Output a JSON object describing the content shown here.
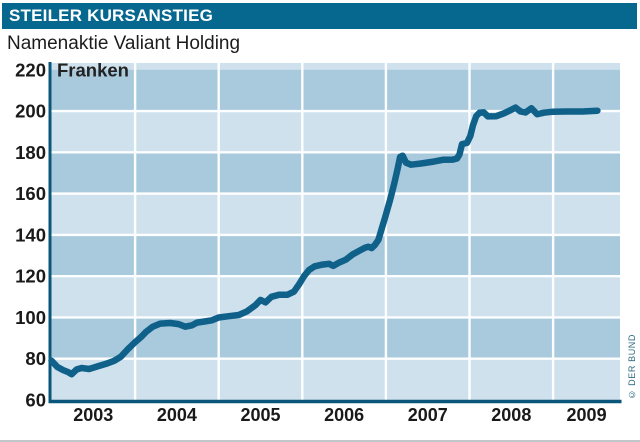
{
  "header": {
    "title": "STEILER KURSANSTIEG"
  },
  "subtitle": "Namenaktie Valiant Holding",
  "credit": "© DER BUND",
  "colors": {
    "header_bg": "#06688e",
    "band_light": "#cfe1ed",
    "band_dark": "#a9cadd",
    "grid_white": "#fdfeff",
    "axis": "#0a567a",
    "series_line": "#10618a",
    "tick_text": "#1a1a1a",
    "credit_text": "#2f6a80"
  },
  "chart_data": {
    "type": "line",
    "title": "Namenaktie Valiant Holding",
    "ylabel": "Franken",
    "xlabel": "",
    "ylim": [
      60,
      223.3
    ],
    "xlim": [
      2003.0,
      2009.8
    ],
    "y_ticks": [
      60,
      80,
      100,
      120,
      140,
      160,
      180,
      200,
      220
    ],
    "x_ticks": [
      2003,
      2004,
      2005,
      2006,
      2007,
      2008,
      2009
    ],
    "grid": "white gridlines over alternating light/dark blue horizontal bands, vertical white lines at year boundaries",
    "legend_position": "none",
    "series": [
      {
        "name": "Namenaktie Valiant Holding (Franken)",
        "x": [
          2003.0,
          2003.07,
          2003.14,
          2003.2,
          2003.24,
          2003.3,
          2003.36,
          2003.45,
          2003.55,
          2003.65,
          2003.75,
          2003.83,
          2003.91,
          2004.0,
          2004.07,
          2004.13,
          2004.21,
          2004.3,
          2004.42,
          2004.52,
          2004.6,
          2004.68,
          2004.74,
          2004.82,
          2004.92,
          2005.0,
          2005.12,
          2005.24,
          2005.34,
          2005.44,
          2005.5,
          2005.56,
          2005.63,
          2005.72,
          2005.82,
          2005.9,
          2005.96,
          2006.02,
          2006.08,
          2006.15,
          2006.24,
          2006.32,
          2006.37,
          2006.44,
          2006.52,
          2006.6,
          2006.68,
          2006.75,
          2006.79,
          2006.83,
          2006.87,
          2006.91,
          2006.95,
          2006.99,
          2007.05,
          2007.1,
          2007.14,
          2007.17,
          2007.2,
          2007.24,
          2007.3,
          2007.42,
          2007.55,
          2007.68,
          2007.8,
          2007.85,
          2007.88,
          2007.91,
          2007.97,
          2008.01,
          2008.04,
          2008.08,
          2008.12,
          2008.17,
          2008.22,
          2008.32,
          2008.42,
          2008.5,
          2008.55,
          2008.61,
          2008.67,
          2008.74,
          2008.81,
          2008.89,
          2009.0,
          2009.15,
          2009.35,
          2009.53
        ],
        "y": [
          79,
          76,
          74.5,
          73.5,
          72.5,
          74.8,
          75.5,
          75,
          76.3,
          77.5,
          79,
          81,
          84.5,
          88,
          90.5,
          93,
          95.5,
          97,
          97.3,
          96.8,
          95.5,
          96.2,
          97.5,
          98,
          98.6,
          100,
          100.6,
          101.2,
          103,
          106,
          108.5,
          107.3,
          110,
          111,
          111,
          112.5,
          116,
          120,
          123,
          124.8,
          125.6,
          126,
          125,
          126.6,
          128,
          130.5,
          132.3,
          133.8,
          134.3,
          133.6,
          135.2,
          137.6,
          143,
          148.5,
          157,
          165,
          172,
          177.8,
          178.4,
          175,
          174,
          174.6,
          175.4,
          176.4,
          176.5,
          177,
          179,
          184,
          184.6,
          188,
          193,
          197.5,
          199.2,
          199.4,
          197.4,
          197.5,
          199,
          200.6,
          201.7,
          199.8,
          199.3,
          201.4,
          198.5,
          199.2,
          199.7,
          199.8,
          199.8,
          200.2
        ]
      }
    ]
  }
}
